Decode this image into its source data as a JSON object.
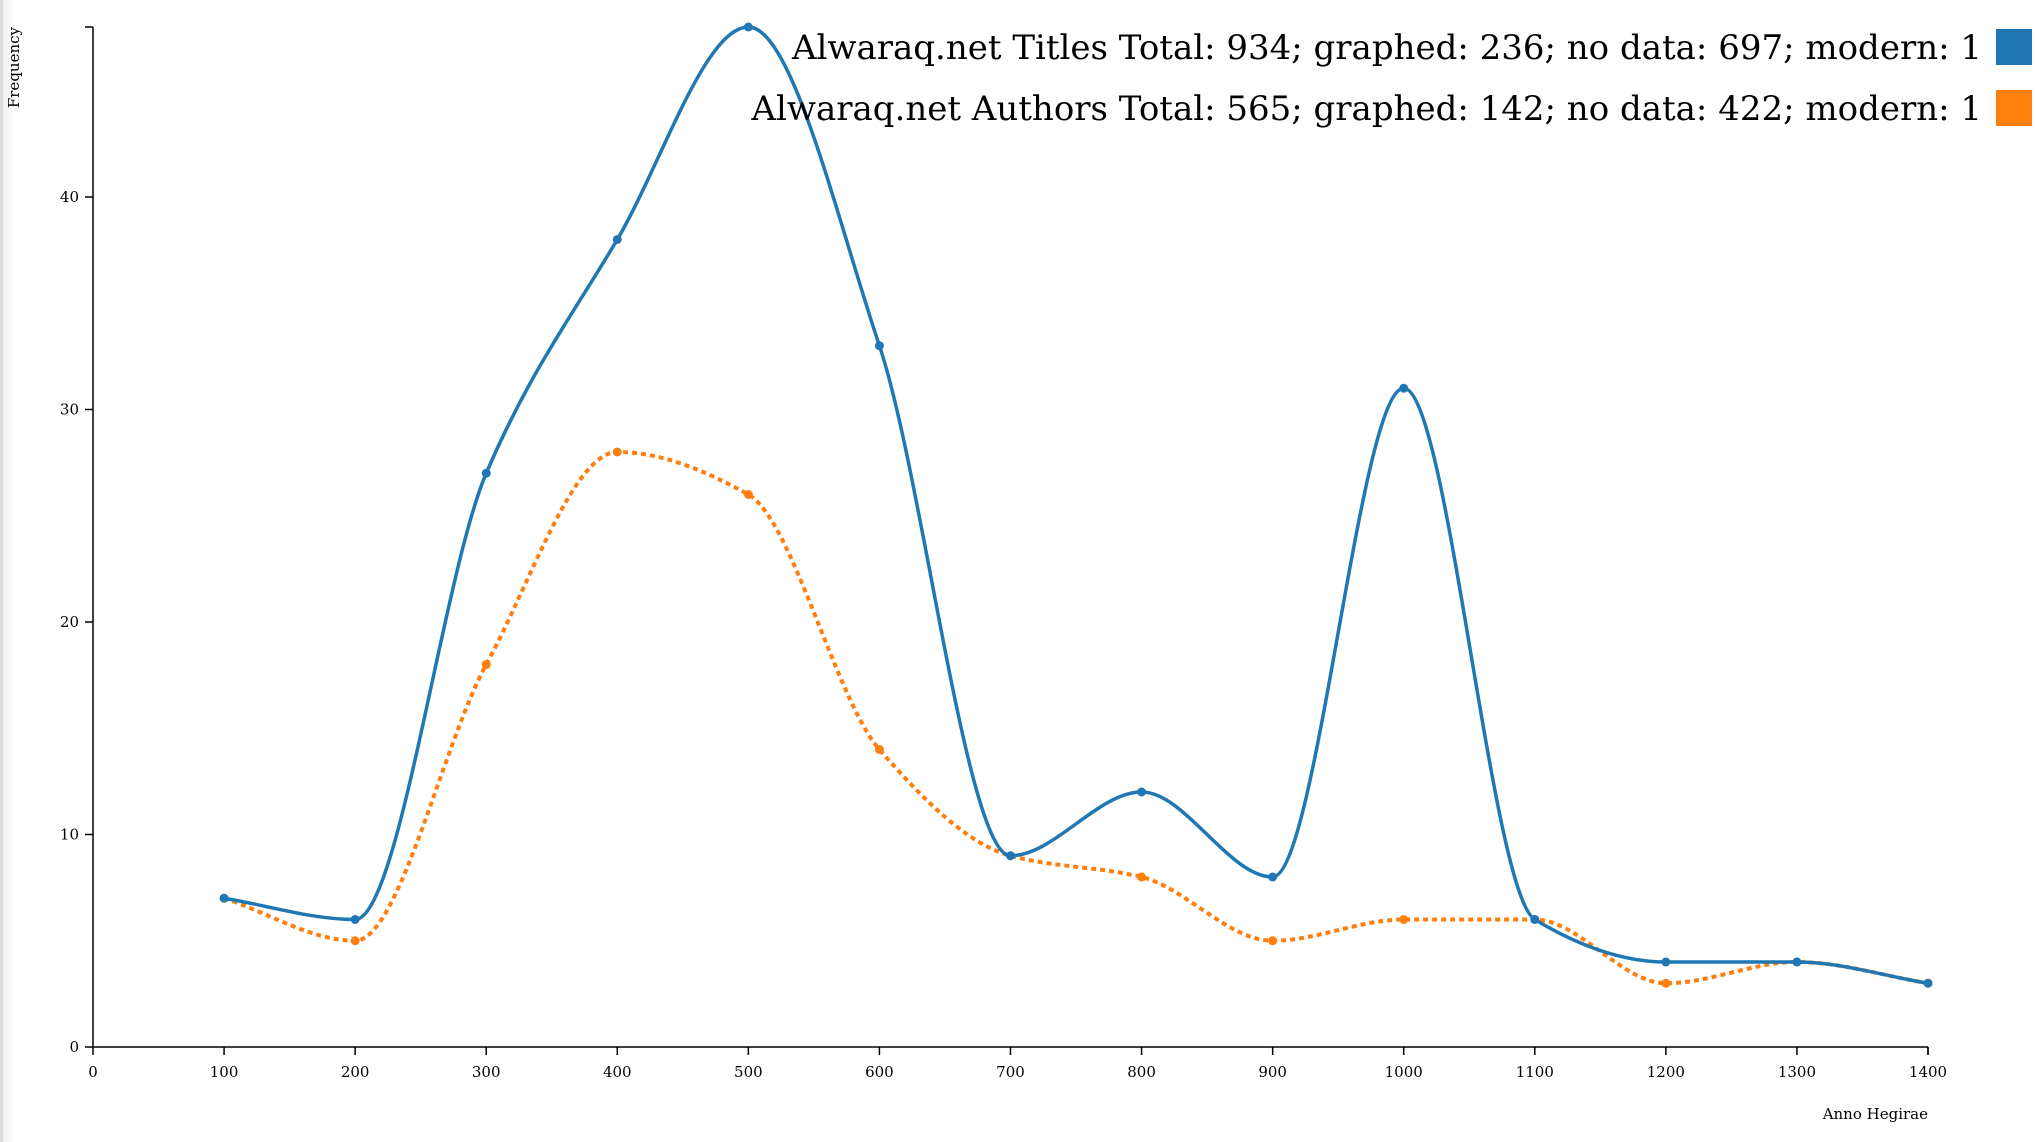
{
  "chart_data": {
    "type": "line",
    "xlabel": "Anno Hegirae",
    "ylabel": "Frequency",
    "xlim": [
      0,
      1400
    ],
    "ylim": [
      0,
      48
    ],
    "x_ticks": [
      0,
      100,
      200,
      300,
      400,
      500,
      600,
      700,
      800,
      900,
      1000,
      1100,
      1200,
      1300,
      1400
    ],
    "y_ticks": [
      0,
      10,
      20,
      30,
      40
    ],
    "grid": false,
    "legend_position": "top-right",
    "x": [
      100,
      200,
      300,
      400,
      500,
      600,
      700,
      800,
      900,
      1000,
      1100,
      1200,
      1300,
      1400
    ],
    "series": [
      {
        "name": "Alwaraq.net Titles Total: 934; graphed: 236; no data: 697; modern: 1",
        "color": "#1f77b4",
        "style": "solid",
        "values": [
          7,
          6,
          27,
          38,
          48,
          33,
          9,
          12,
          8,
          31,
          6,
          4,
          4,
          3
        ]
      },
      {
        "name": "Alwaraq.net Authors Total: 565; graphed: 142; no data: 422; modern: 1",
        "color": "#ff7f0e",
        "style": "dotted",
        "values": [
          7,
          5,
          18,
          28,
          26,
          14,
          9,
          8,
          5,
          6,
          6,
          3,
          4,
          3
        ]
      }
    ]
  }
}
